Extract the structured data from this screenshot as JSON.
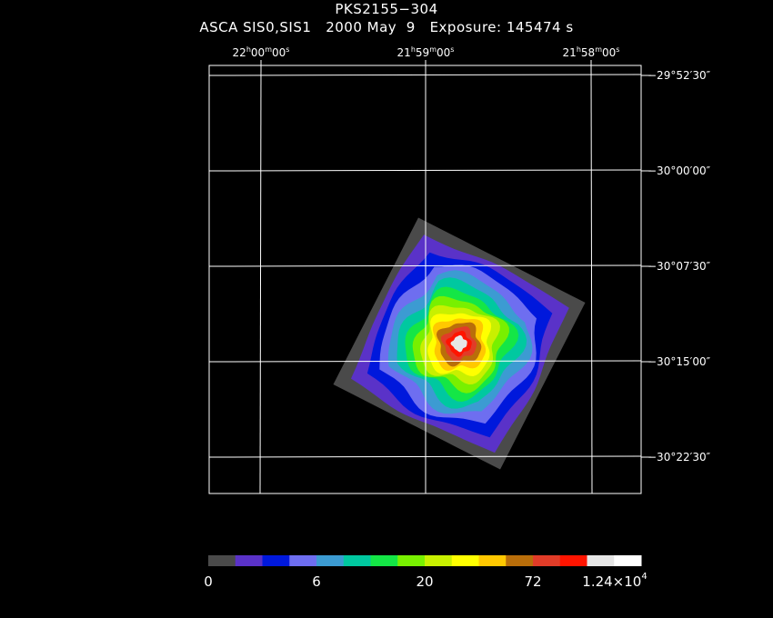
{
  "chart_data": {
    "type": "heatmap",
    "title": "PKS2155−304",
    "subtitle": {
      "instrument": "ASCA SIS0,SIS1",
      "date": "2000 May  9",
      "exposure": "Exposure: 145474 s"
    },
    "x_axis": {
      "label": "",
      "ticks": [
        {
          "h": "22",
          "m": "00",
          "s": "00"
        },
        {
          "h": "21",
          "m": "59",
          "s": "00"
        },
        {
          "h": "21",
          "m": "58",
          "s": "00"
        }
      ]
    },
    "y_axis": {
      "label": "",
      "ticks": [
        "−29°52′30″",
        "−30°00′00″",
        "−30°07′30″",
        "−30°15′00″",
        "−30°22′30″"
      ]
    },
    "grid": true,
    "colorbar": {
      "colors": [
        "#4a4a4a",
        "#5a32c8",
        "#0018dc",
        "#6e6ef0",
        "#3c9bd2",
        "#00c8a0",
        "#14e646",
        "#78f000",
        "#c8f000",
        "#ffff00",
        "#ffc800",
        "#b96e0a",
        "#e13c28",
        "#ff1400",
        "#e6e6e6",
        "#ffffff"
      ],
      "tick_labels": [
        "0",
        "6",
        "20",
        "72",
        "1.24×10"
      ],
      "tick_label_exponent": "4"
    },
    "image": {
      "description_levels": "Tilted square detector field with a bright white core near center, surrounded by red, orange, yellow, green, cyan, blue and grey rings to the edges."
    }
  }
}
